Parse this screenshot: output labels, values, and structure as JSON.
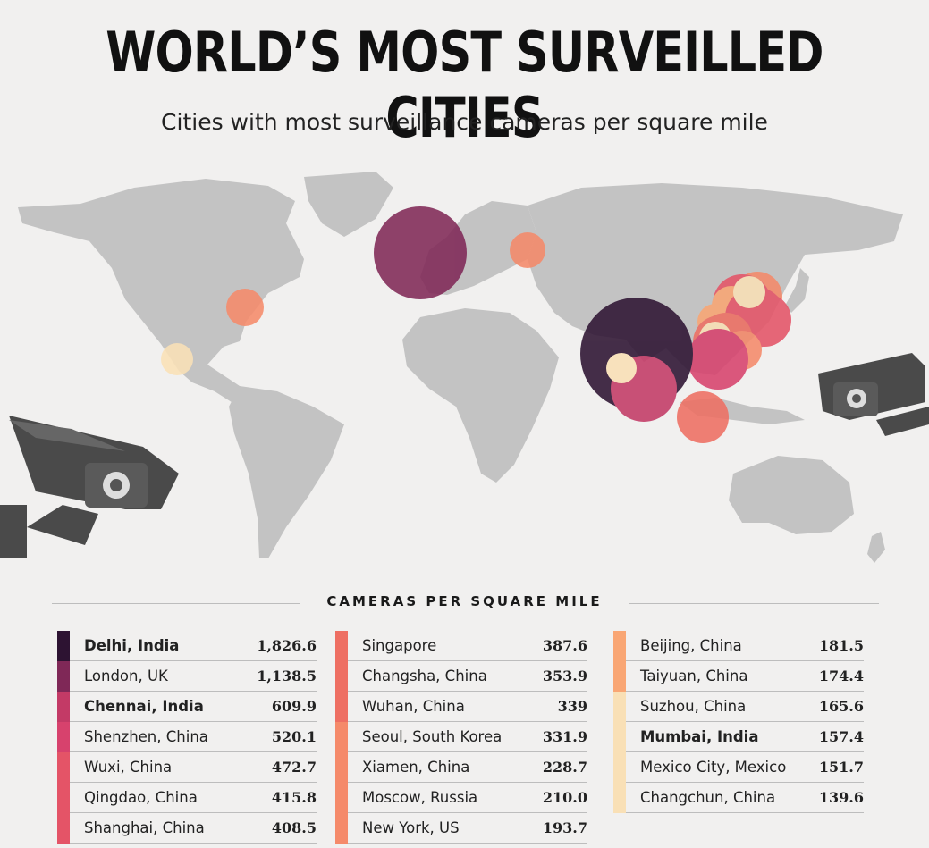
{
  "header": {
    "title": "WORLD’S MOST SURVEILLED CITIES",
    "subtitle": "Cities with most surveillance cameras per square mile"
  },
  "legend_heading": "CAMERAS PER SQUARE MILE",
  "chart_data": {
    "type": "table",
    "unit": "cameras per square mile",
    "rows": [
      {
        "city": "Delhi, India",
        "value": "1,826.6",
        "v": 1826.6,
        "bold": true,
        "color": "#2d1332"
      },
      {
        "city": "London, UK",
        "value": "1,138.5",
        "v": 1138.5,
        "bold": false,
        "color": "#7f2857"
      },
      {
        "city": "Chennai, India",
        "value": "609.9",
        "v": 609.9,
        "bold": true,
        "color": "#c33a66"
      },
      {
        "city": "Shenzhen, China",
        "value": "520.1",
        "v": 520.1,
        "bold": false,
        "color": "#d7426d"
      },
      {
        "city": "Wuxi, China",
        "value": "472.7",
        "v": 472.7,
        "bold": false,
        "color": "#e45467"
      },
      {
        "city": "Qingdao, China",
        "value": "415.8",
        "v": 415.8,
        "bold": false,
        "color": "#e45467"
      },
      {
        "city": "Shanghai, China",
        "value": "408.5",
        "v": 408.5,
        "bold": false,
        "color": "#e45467"
      },
      {
        "city": "Singapore",
        "value": "387.6",
        "v": 387.6,
        "bold": false,
        "color": "#ee6f63"
      },
      {
        "city": "Changsha, China",
        "value": "353.9",
        "v": 353.9,
        "bold": false,
        "color": "#ee6f63"
      },
      {
        "city": "Wuhan, China",
        "value": "339",
        "v": 339,
        "bold": false,
        "color": "#ee6f63"
      },
      {
        "city": "Seoul, South Korea",
        "value": "331.9",
        "v": 331.9,
        "bold": false,
        "color": "#f58a6a"
      },
      {
        "city": "Xiamen, China",
        "value": "228.7",
        "v": 228.7,
        "bold": false,
        "color": "#f58a6a"
      },
      {
        "city": "Moscow, Russia",
        "value": "210.0",
        "v": 210.0,
        "bold": false,
        "color": "#f58a6a"
      },
      {
        "city": "New York, US",
        "value": "193.7",
        "v": 193.7,
        "bold": false,
        "color": "#f58a6a"
      },
      {
        "city": "Beijing, China",
        "value": "181.5",
        "v": 181.5,
        "bold": false,
        "color": "#f9a674"
      },
      {
        "city": "Taiyuan, China",
        "value": "174.4",
        "v": 174.4,
        "bold": false,
        "color": "#f9a674"
      },
      {
        "city": "Suzhou, China",
        "value": "165.6",
        "v": 165.6,
        "bold": false,
        "color": "#f9e0b6"
      },
      {
        "city": "Mumbai, India",
        "value": "157.4",
        "v": 157.4,
        "bold": true,
        "color": "#f9e0b6"
      },
      {
        "city": "Mexico City, Mexico",
        "value": "151.7",
        "v": 151.7,
        "bold": false,
        "color": "#f9e0b6"
      },
      {
        "city": "Changchun, China",
        "value": "139.6",
        "v": 139.6,
        "bold": false,
        "color": "#f9e0b6"
      }
    ]
  },
  "colors": {
    "land": "#c3c3c3",
    "background": "#f1f0ef",
    "camera": "#4a4a4a"
  }
}
